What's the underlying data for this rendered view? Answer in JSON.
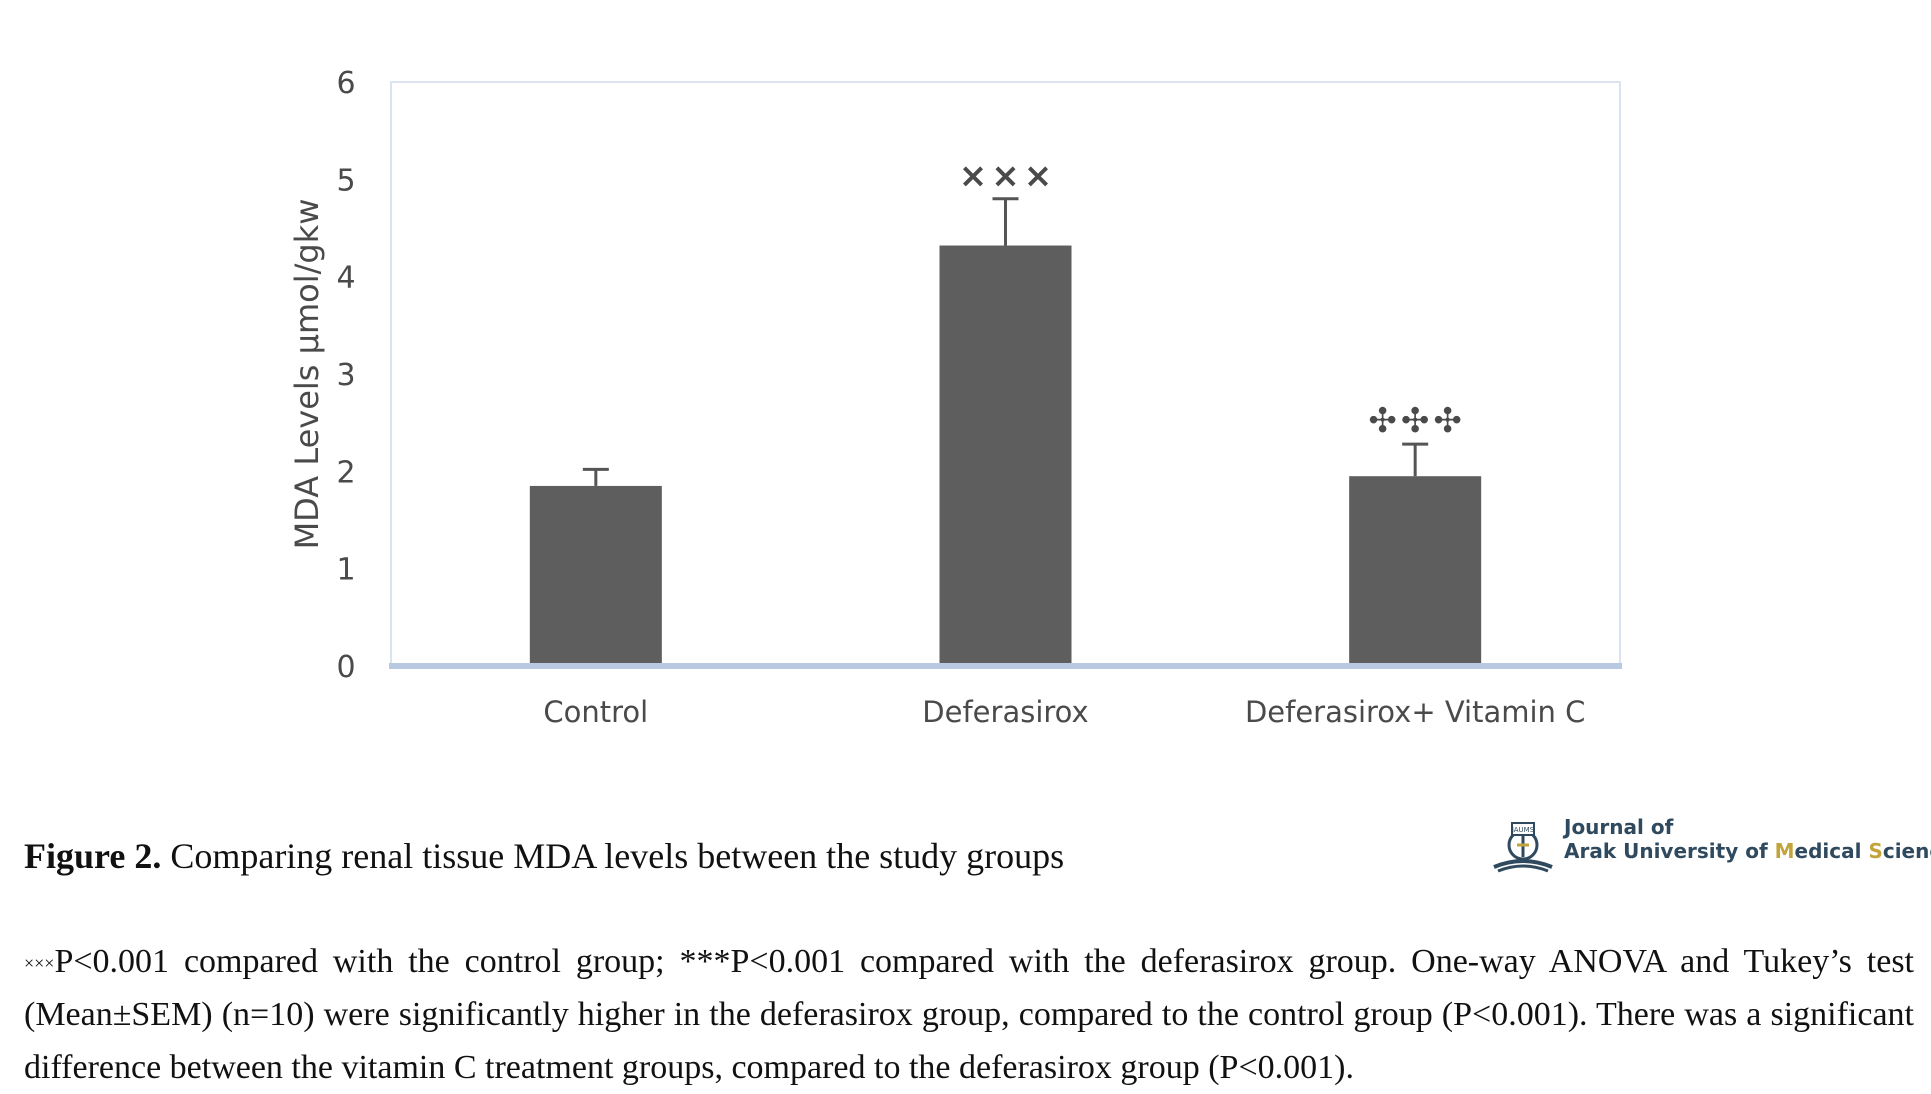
{
  "chart_data": {
    "type": "bar",
    "categories": [
      "Control",
      "Deferasirox",
      "Deferasirox+ Vitamin C"
    ],
    "values": [
      1.85,
      4.32,
      1.95
    ],
    "errors": [
      0.17,
      0.48,
      0.33
    ],
    "significance_marks": [
      "",
      "×××",
      "✣✣✣"
    ],
    "ylabel": "MDA Levels µmol/gkw",
    "xlabel": "",
    "ylim": [
      0,
      6
    ],
    "yticks": [
      0,
      1,
      2,
      3,
      4,
      5,
      6
    ],
    "grid": false,
    "bar_color": "#5e5e5e",
    "plot_border_color": "#b9c9e2"
  },
  "caption": {
    "label": "Figure 2.",
    "text": " Comparing renal tissue MDA levels between the study groups"
  },
  "notes": {
    "sup": "×××",
    "line": "P<0.001 compared with the control group; ***P<0.001 compared with the deferasirox group. One-way ANOVA and Tukey’s test (Mean±SEM) (n=10) were significantly higher in the deferasirox group, compared to the control group (P<0.001). There was a significant difference between the vitamin C treatment groups, compared to the deferasirox group (P<0.001)."
  },
  "logo": {
    "line1": "Journal of",
    "line2_a": "Arak University of ",
    "line2_m": "M",
    "line2_b": "edical ",
    "line2_s": "S",
    "line2_c": "ciences",
    "badge": "JAUMS"
  }
}
